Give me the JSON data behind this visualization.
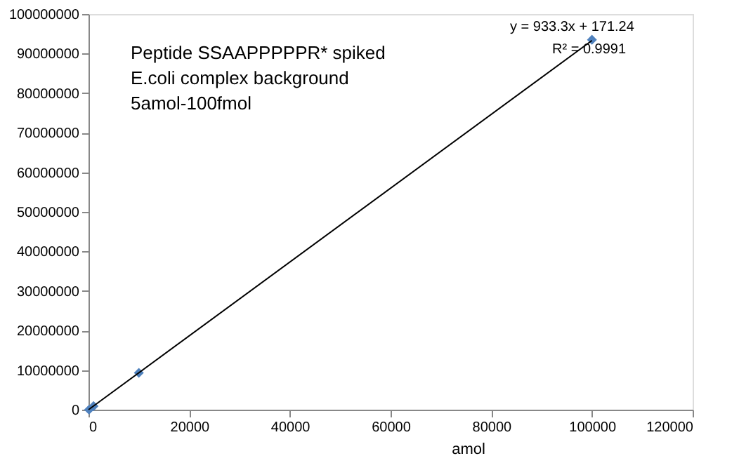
{
  "chart_data": {
    "type": "scatter",
    "xlabel": "amol",
    "x": [
      100,
      1000,
      10000,
      100000
    ],
    "series": [
      {
        "color": "#4f81bd",
        "values": [
          0,
          900000,
          9300000,
          93500000
        ],
        "marker": "diamond"
      },
      {
        "type": "line",
        "color": "#000000",
        "x": [
          0,
          100000
        ],
        "values": [
          0,
          93300000
        ],
        "marker": "none"
      }
    ],
    "xlim": [
      0,
      120000
    ],
    "xticks": [
      0,
      20000,
      40000,
      60000,
      80000,
      100000,
      120000
    ],
    "ylim": [
      0,
      100000000
    ],
    "yticks": [
      0,
      10000000,
      20000000,
      30000000,
      40000000,
      50000000,
      60000000,
      70000000,
      80000000,
      90000000,
      100000000
    ],
    "grid": false,
    "annotations": [
      "Peptide  SSAAPPPPPR* spiked",
      "E.coli complex background",
      "5amol-100fmol",
      "y = 933.3x + 171.24",
      "R² = 0.9991"
    ]
  }
}
